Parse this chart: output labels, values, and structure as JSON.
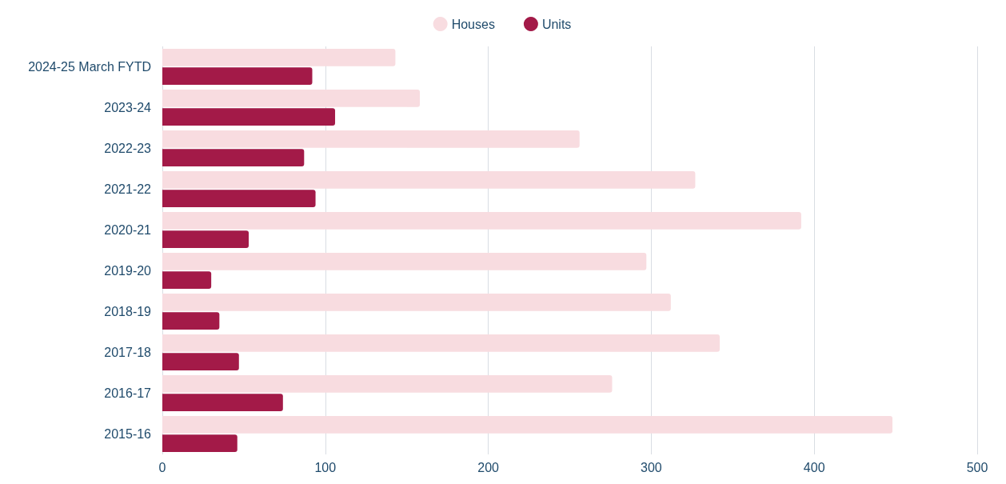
{
  "chart_data": {
    "type": "bar",
    "orientation": "horizontal",
    "categories": [
      "2024-25 March FYTD",
      "2023-24",
      "2022-23",
      "2021-22",
      "2020-21",
      "2019-20",
      "2018-19",
      "2017-18",
      "2016-17",
      "2015-16"
    ],
    "series": [
      {
        "name": "Houses",
        "color": "#f8dce0",
        "values": [
          143,
          158,
          256,
          327,
          392,
          297,
          312,
          342,
          276,
          448
        ]
      },
      {
        "name": "Units",
        "color": "#a31a48",
        "values": [
          92,
          106,
          87,
          94,
          53,
          30,
          35,
          47,
          74,
          46
        ]
      }
    ],
    "xlim": [
      0,
      500
    ],
    "xticks": [
      0,
      100,
      200,
      300,
      400,
      500
    ],
    "grid": "x",
    "legend": "top"
  }
}
